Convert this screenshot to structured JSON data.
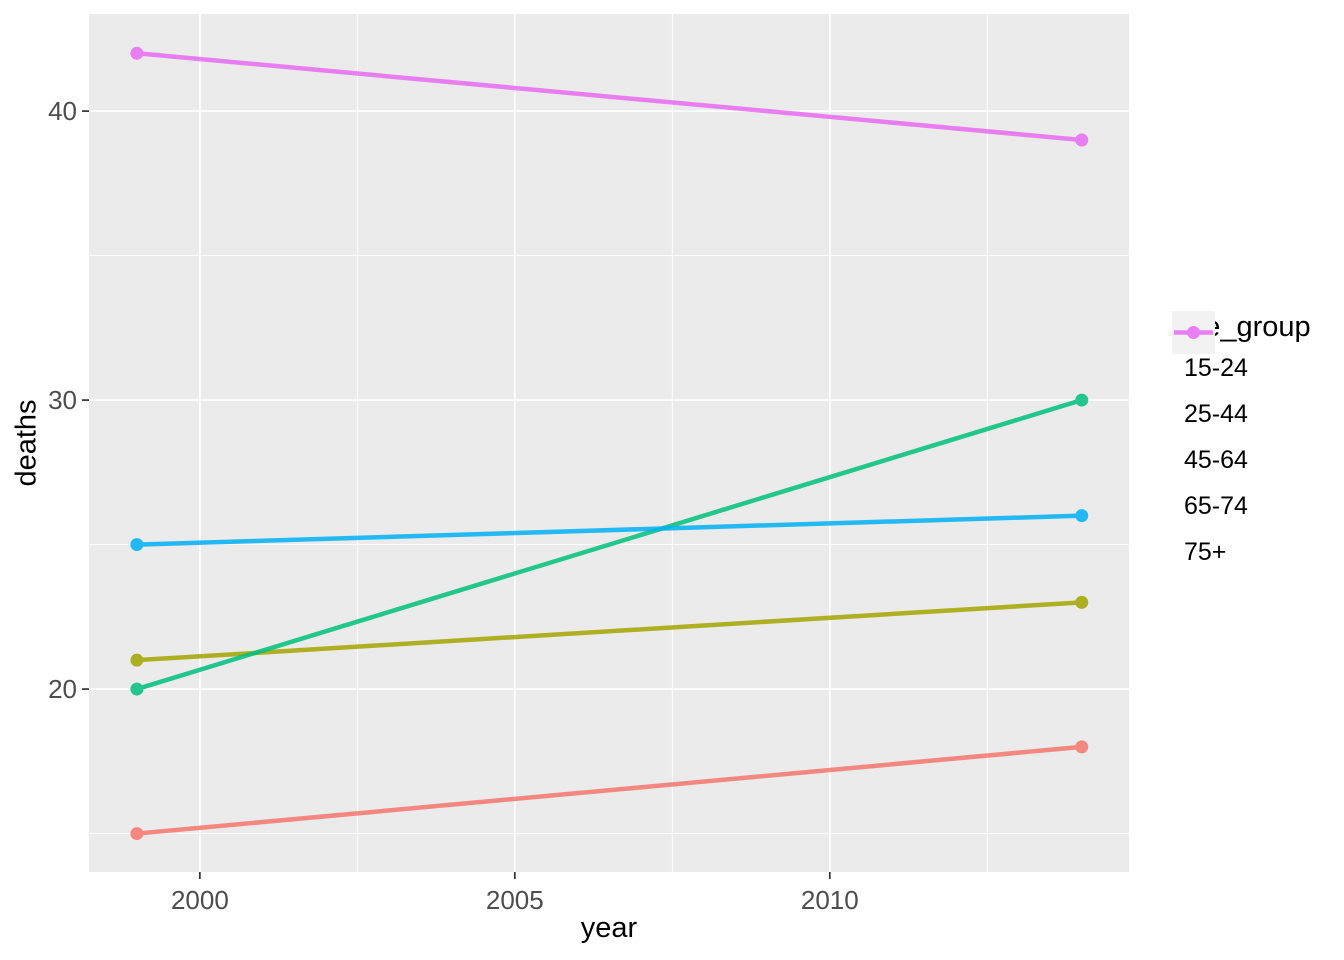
{
  "chart_data": {
    "type": "line",
    "title": "",
    "xlabel": "year",
    "ylabel": "deaths",
    "x": [
      1999,
      2014
    ],
    "series": [
      {
        "name": "15-24",
        "color": "#F8766D",
        "values": [
          15,
          18
        ]
      },
      {
        "name": "25-44",
        "color": "#A3A500",
        "values": [
          21,
          23
        ]
      },
      {
        "name": "45-64",
        "color": "#00BF7D",
        "values": [
          20,
          30
        ]
      },
      {
        "name": "65-74",
        "color": "#00B0F6",
        "values": [
          25,
          26
        ]
      },
      {
        "name": "75+",
        "color": "#E76BF3",
        "values": [
          42,
          39
        ]
      }
    ],
    "legend": {
      "title": "age_group",
      "position": "right",
      "entries": [
        "15-24",
        "25-44",
        "45-64",
        "65-74",
        "75+"
      ]
    },
    "x_ticks": [
      2000,
      2005,
      2010
    ],
    "y_ticks": [
      20,
      30,
      40
    ],
    "x_minor_ticks": [
      2002.5,
      2007.5,
      2012.5
    ],
    "y_minor_ticks": [
      15,
      25,
      35
    ],
    "xlim": [
      1998.24,
      2014.75
    ],
    "ylim": [
      13.67,
      43.36
    ],
    "grid": true,
    "style": {
      "panel_bg": "#EBEBEB",
      "grid_color": "#FFFFFF",
      "tick_color": "#333333",
      "tick_label_color": "#4D4D4D",
      "axis_title_color": "#000000",
      "legend_key_bg": "#F2F2F2",
      "series_opacity": 0.85,
      "line_width": 4.5,
      "point_radius": 6.5
    }
  }
}
